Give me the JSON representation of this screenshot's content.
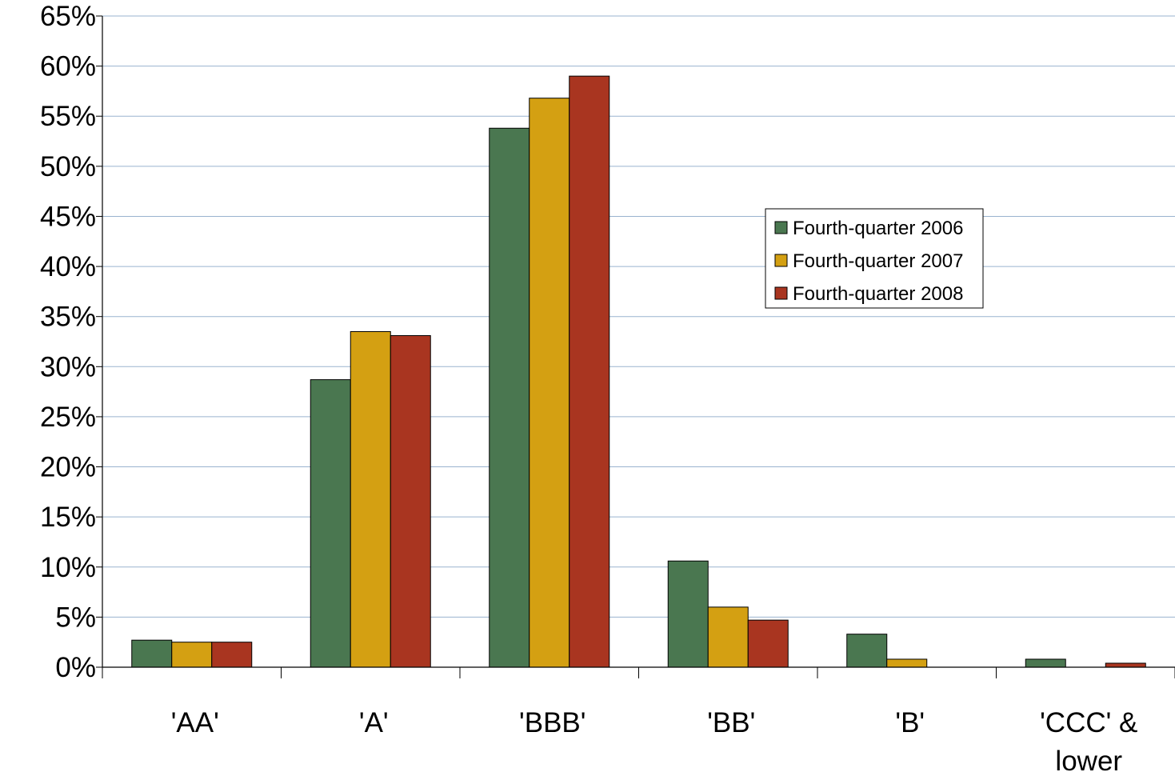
{
  "chart_data": {
    "type": "bar",
    "title": "",
    "xlabel": "",
    "ylabel": "",
    "categories": [
      "'AA'",
      "'A'",
      "'BBB'",
      "'BB'",
      "'B'",
      "'CCC' &\nlower"
    ],
    "series": [
      {
        "name": "Fourth-quarter 2006",
        "color": "#4a7750",
        "values": [
          2.7,
          28.7,
          53.8,
          10.6,
          3.3,
          0.8
        ]
      },
      {
        "name": "Fourth-quarter 2007",
        "color": "#d4a012",
        "values": [
          2.5,
          33.5,
          56.8,
          6.0,
          0.8,
          0.0
        ]
      },
      {
        "name": "Fourth-quarter 2008",
        "color": "#a93520",
        "values": [
          2.5,
          33.1,
          59.0,
          4.7,
          0.0,
          0.4
        ]
      }
    ],
    "ylim": [
      0,
      65
    ],
    "yticks": [
      "0%",
      "5%",
      "10%",
      "15%",
      "20%",
      "25%",
      "30%",
      "35%",
      "40%",
      "45%",
      "50%",
      "55%",
      "60%",
      "65%"
    ],
    "grid": true,
    "legend_position": "right",
    "gridline_color": "#9ab3cf"
  }
}
